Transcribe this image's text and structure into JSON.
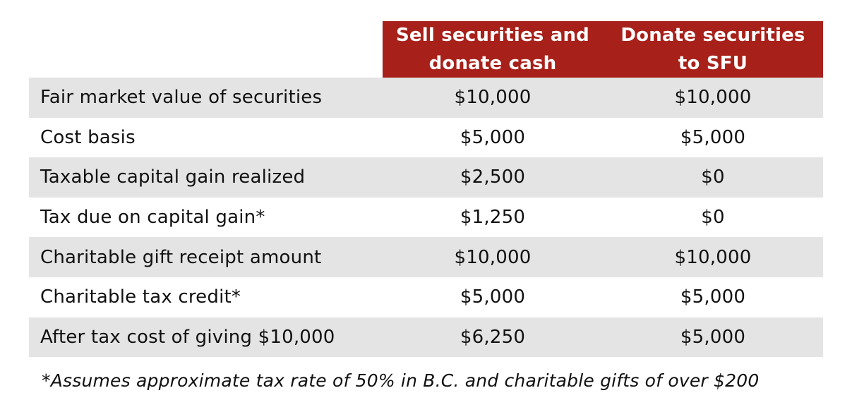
{
  "table": {
    "headers": [
      "",
      "Sell securities and\ndonate cash",
      "Donate securities\nto SFU"
    ],
    "rows": [
      {
        "label": "Fair market value of securities",
        "sell": "$10,000",
        "donate": "$10,000"
      },
      {
        "label": "Cost basis",
        "sell": "$5,000",
        "donate": "$5,000"
      },
      {
        "label": "Taxable capital gain realized",
        "sell": "$2,500",
        "donate": "$0"
      },
      {
        "label": "Tax due on capital gain*",
        "sell": "$1,250",
        "donate": "$0"
      },
      {
        "label": "Charitable gift receipt amount",
        "sell": "$10,000",
        "donate": "$10,000"
      },
      {
        "label": "Charitable tax credit*",
        "sell": "$5,000",
        "donate": "$5,000"
      },
      {
        "label": "After tax cost of giving $10,000",
        "sell": "$6,250",
        "donate": "$5,000"
      }
    ]
  },
  "footnote": "*Assumes approximate tax rate of 50% in B.C. and charitable gifts of over $200",
  "colors": {
    "header_bg": "#a8201a",
    "header_text": "#ffffff",
    "row_shade": "#e4e4e4"
  }
}
